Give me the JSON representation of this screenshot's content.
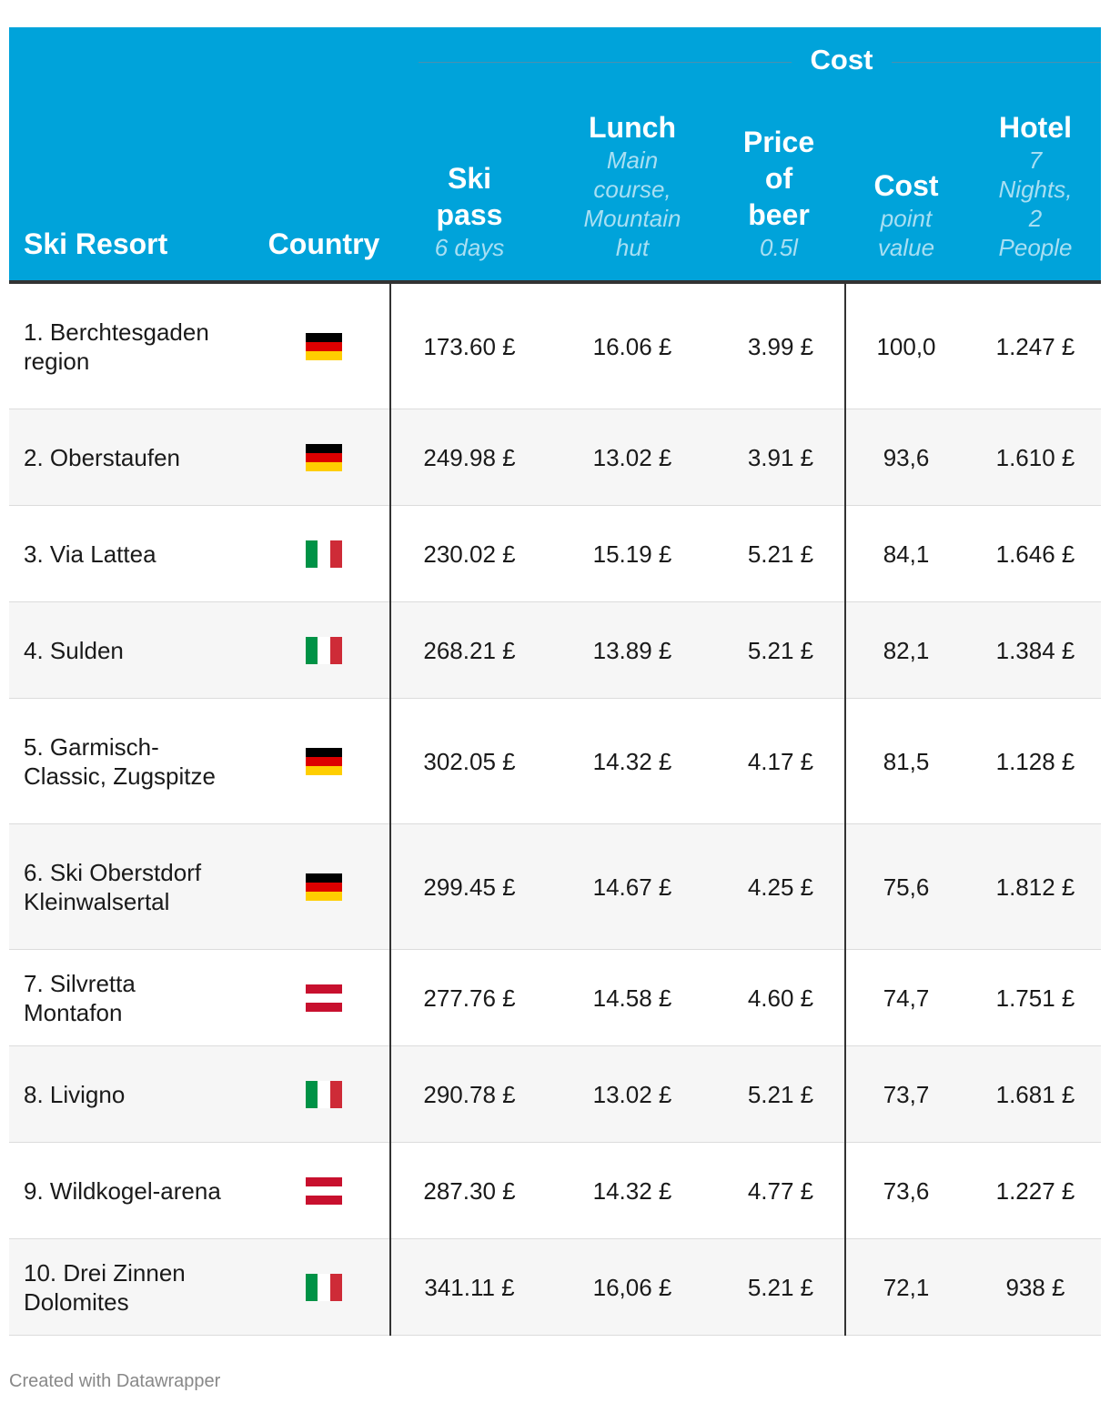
{
  "chart_data": {
    "type": "table",
    "group_header": "Cost",
    "columns": [
      {
        "key": "resort",
        "title": "Ski Resort",
        "subtitle": ""
      },
      {
        "key": "country",
        "title": "Country",
        "subtitle": ""
      },
      {
        "key": "ski_pass",
        "title": "Ski pass",
        "subtitle": "6 days"
      },
      {
        "key": "lunch",
        "title": "Lunch",
        "subtitle": "Main course, Mountain hut"
      },
      {
        "key": "beer",
        "title": "Price of beer",
        "subtitle": "0.5l"
      },
      {
        "key": "points",
        "title": "Cost",
        "subtitle": "point value"
      },
      {
        "key": "hotel",
        "title": "Hotel",
        "subtitle": "7 Nights, 2 People"
      }
    ],
    "rows": [
      {
        "resort": "1. Berchtesgaden region",
        "country": "germany-flag-icon",
        "ski_pass": "173.60 £",
        "lunch": "16.06 £",
        "beer": "3.99 £",
        "points": "100,0",
        "hotel": "1.247 £"
      },
      {
        "resort": "2. Oberstaufen",
        "country": "germany-flag-icon",
        "ski_pass": "249.98 £",
        "lunch": "13.02 £",
        "beer": "3.91 £",
        "points": "93,6",
        "hotel": "1.610 £"
      },
      {
        "resort": "3. Via Lattea",
        "country": "italy-flag-icon",
        "ski_pass": "230.02 £",
        "lunch": "15.19 £",
        "beer": "5.21 £",
        "points": "84,1",
        "hotel": "1.646 £"
      },
      {
        "resort": "4. Sulden",
        "country": "italy-flag-icon",
        "ski_pass": "268.21 £",
        "lunch": "13.89 £",
        "beer": "5.21 £",
        "points": "82,1",
        "hotel": "1.384 £"
      },
      {
        "resort": "5. Garmisch-Classic, Zugspitze",
        "country": "germany-flag-icon",
        "ski_pass": "302.05 £",
        "lunch": "14.32 £",
        "beer": "4.17 £",
        "points": "81,5",
        "hotel": "1.128 £"
      },
      {
        "resort": "6. Ski Oberstdorf Kleinwalsertal",
        "country": "germany-flag-icon",
        "ski_pass": "299.45 £",
        "lunch": "14.67 £",
        "beer": "4.25 £",
        "points": "75,6",
        "hotel": "1.812 £"
      },
      {
        "resort": "7. Silvretta Montafon",
        "country": "austria-flag-icon",
        "ski_pass": "277.76 £",
        "lunch": "14.58 £",
        "beer": "4.60 £",
        "points": "74,7",
        "hotel": "1.751 £"
      },
      {
        "resort": "8. Livigno",
        "country": "italy-flag-icon",
        "ski_pass": "290.78 £",
        "lunch": "13.02 £",
        "beer": "5.21 £",
        "points": "73,7",
        "hotel": "1.681 £"
      },
      {
        "resort": "9. Wildkogel-arena",
        "country": "austria-flag-icon",
        "ski_pass": "287.30 £",
        "lunch": "14.32 £",
        "beer": "4.77 £",
        "points": "73,6",
        "hotel": "1.227 £"
      },
      {
        "resort": "10. Drei Zinnen Dolomites",
        "country": "italy-flag-icon",
        "ski_pass": "341.11 £",
        "lunch": "16,06 £",
        "beer": "5.21 £",
        "points": "72,1",
        "hotel": "938 £"
      }
    ]
  },
  "flag_colors": {
    "germany-flag-icon": [
      "#000000",
      "#dd0000",
      "#ffce00"
    ],
    "italy-flag-icon": [
      "#009246",
      "#ffffff",
      "#ce2b37"
    ],
    "austria-flag-icon": [
      "#c8102e",
      "#ffffff",
      "#c8102e"
    ]
  },
  "colors": {
    "header_bg": "#00a3da",
    "subtitle": "#a8dff3",
    "alt_row": "#f6f6f6"
  },
  "footer": "Created with Datawrapper"
}
